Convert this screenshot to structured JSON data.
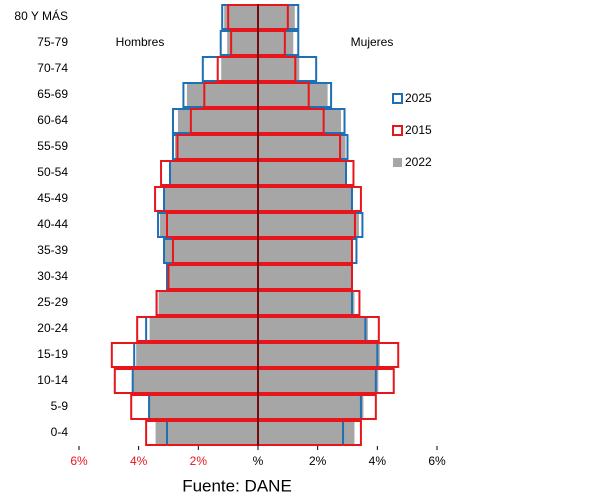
{
  "chart_data": {
    "type": "pyramid",
    "left_label": "Hombres",
    "right_label": "Mujeres",
    "source": "Fuente: DANE",
    "categories": [
      "80 Y MÁS",
      "75-79",
      "70-74",
      "65-69",
      "60-64",
      "55-59",
      "50-54",
      "45-49",
      "40-44",
      "35-39",
      "30-34",
      "25-29",
      "20-24",
      "15-19",
      "10-14",
      "5-9",
      "0-4"
    ],
    "xlim": [
      -6,
      6
    ],
    "xticks": [
      {
        "value": -6,
        "label": "6%"
      },
      {
        "value": -4,
        "label": "4%"
      },
      {
        "value": -2,
        "label": "2%"
      },
      {
        "value": 0,
        "label": "%"
      },
      {
        "value": 2,
        "label": "2%"
      },
      {
        "value": 4,
        "label": "4%"
      },
      {
        "value": 6,
        "label": "6%"
      }
    ],
    "series": [
      {
        "name": "2022",
        "color": "#a6a6a6",
        "style": "filled",
        "men": [
          1.15,
          1.05,
          1.25,
          2.4,
          2.7,
          2.8,
          3.0,
          3.2,
          3.3,
          3.15,
          3.05,
          3.35,
          3.65,
          4.1,
          4.2,
          3.7,
          3.45
        ],
        "women": [
          1.25,
          1.2,
          1.4,
          2.35,
          2.8,
          2.95,
          3.0,
          3.15,
          3.4,
          3.2,
          3.2,
          3.25,
          3.7,
          4.1,
          4.05,
          3.55,
          3.25
        ]
      },
      {
        "name": "2025",
        "color": "#1f6fb5",
        "style": "outline",
        "men": [
          1.2,
          1.25,
          1.85,
          2.5,
          2.85,
          2.85,
          2.95,
          3.15,
          3.35,
          3.15,
          3.05,
          3.4,
          3.75,
          4.15,
          4.2,
          3.65,
          3.05
        ],
        "women": [
          1.35,
          1.35,
          1.95,
          2.45,
          2.9,
          3.0,
          2.95,
          3.15,
          3.5,
          3.3,
          3.15,
          3.15,
          3.6,
          4.0,
          3.95,
          3.45,
          2.85
        ]
      },
      {
        "name": "2015",
        "color": "#e8161b",
        "style": "outline",
        "men": [
          1.0,
          0.9,
          1.35,
          1.8,
          2.25,
          2.7,
          3.25,
          3.45,
          3.05,
          2.85,
          3.0,
          3.4,
          4.05,
          4.9,
          4.8,
          4.25,
          3.75
        ],
        "women": [
          1.0,
          0.9,
          1.25,
          1.7,
          2.2,
          2.75,
          3.2,
          3.45,
          3.25,
          3.15,
          3.15,
          3.4,
          4.05,
          4.7,
          4.55,
          3.95,
          3.45
        ]
      }
    ],
    "legend_order": [
      1,
      2,
      0
    ]
  }
}
